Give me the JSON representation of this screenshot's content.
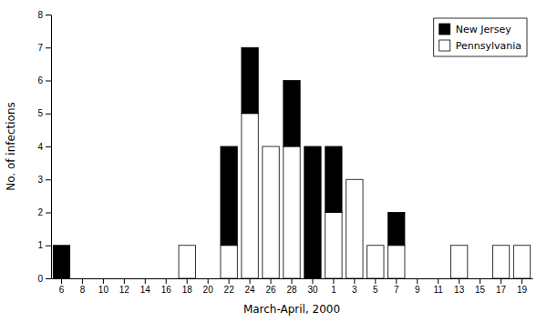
{
  "chart_data": {
    "type": "bar",
    "stacked": true,
    "categories": [
      "6",
      "8",
      "10",
      "12",
      "14",
      "16",
      "18",
      "20",
      "22",
      "24",
      "26",
      "28",
      "30",
      "1",
      "3",
      "5",
      "7",
      "9",
      "11",
      "13",
      "15",
      "17",
      "19"
    ],
    "series": [
      {
        "name": "Pennsylvania",
        "color": "#ffffff",
        "values": [
          0,
          0,
          0,
          0,
          0,
          0,
          1,
          0,
          1,
          5,
          4,
          4,
          0,
          2,
          3,
          1,
          1,
          0,
          0,
          1,
          0,
          1,
          1
        ]
      },
      {
        "name": "New Jersey",
        "color": "#000000",
        "values": [
          1,
          0,
          0,
          0,
          0,
          0,
          0,
          0,
          3,
          2,
          0,
          2,
          4,
          2,
          0,
          0,
          1,
          0,
          0,
          0,
          0,
          0,
          0
        ]
      }
    ],
    "xlabel": "March-April, 2000",
    "ylabel": "No. of infections",
    "ylim": [
      0,
      8
    ],
    "yticks": [
      0,
      1,
      2,
      3,
      4,
      5,
      6,
      7,
      8
    ],
    "grid": false,
    "legend": "upper right"
  }
}
